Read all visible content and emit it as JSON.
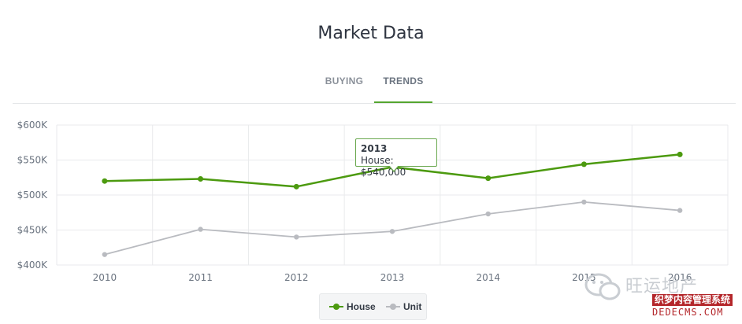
{
  "page": {
    "title": "Market Data",
    "tabs": [
      {
        "label": "BUYING",
        "active": false
      },
      {
        "label": "TRENDS",
        "active": true
      }
    ]
  },
  "colors": {
    "house": "#4c9a0f",
    "unit": "#b9bbc0",
    "accent": "#55a630",
    "grid": "#e9eaec"
  },
  "tooltip": {
    "title": "2013",
    "text": "House: $540,000"
  },
  "legend": [
    {
      "label": "House",
      "icon": "green-dot-line-icon"
    },
    {
      "label": "Unit",
      "icon": "gray-dot-line-icon"
    }
  ],
  "watermark": {
    "brand": "旺运地产",
    "line1": "织梦内容管理系统",
    "line2": "DEDECMS.COM"
  },
  "chart_data": {
    "type": "line",
    "title": "Market Data",
    "xlabel": "",
    "ylabel": "",
    "x": [
      "2010",
      "2011",
      "2012",
      "2013",
      "2014",
      "2015",
      "2016"
    ],
    "ylim": [
      400000,
      600000
    ],
    "yticks": [
      400000,
      450000,
      500000,
      550000,
      600000
    ],
    "ytick_labels": [
      "$400K",
      "$450K",
      "$500K",
      "$550K",
      "$600K"
    ],
    "grid": true,
    "legend_position": "bottom-center",
    "series": [
      {
        "name": "House",
        "values": [
          520000,
          523000,
          512000,
          540000,
          524000,
          544000,
          558000
        ]
      },
      {
        "name": "Unit",
        "values": [
          415000,
          451000,
          440000,
          448000,
          473000,
          490000,
          478000
        ]
      }
    ]
  }
}
